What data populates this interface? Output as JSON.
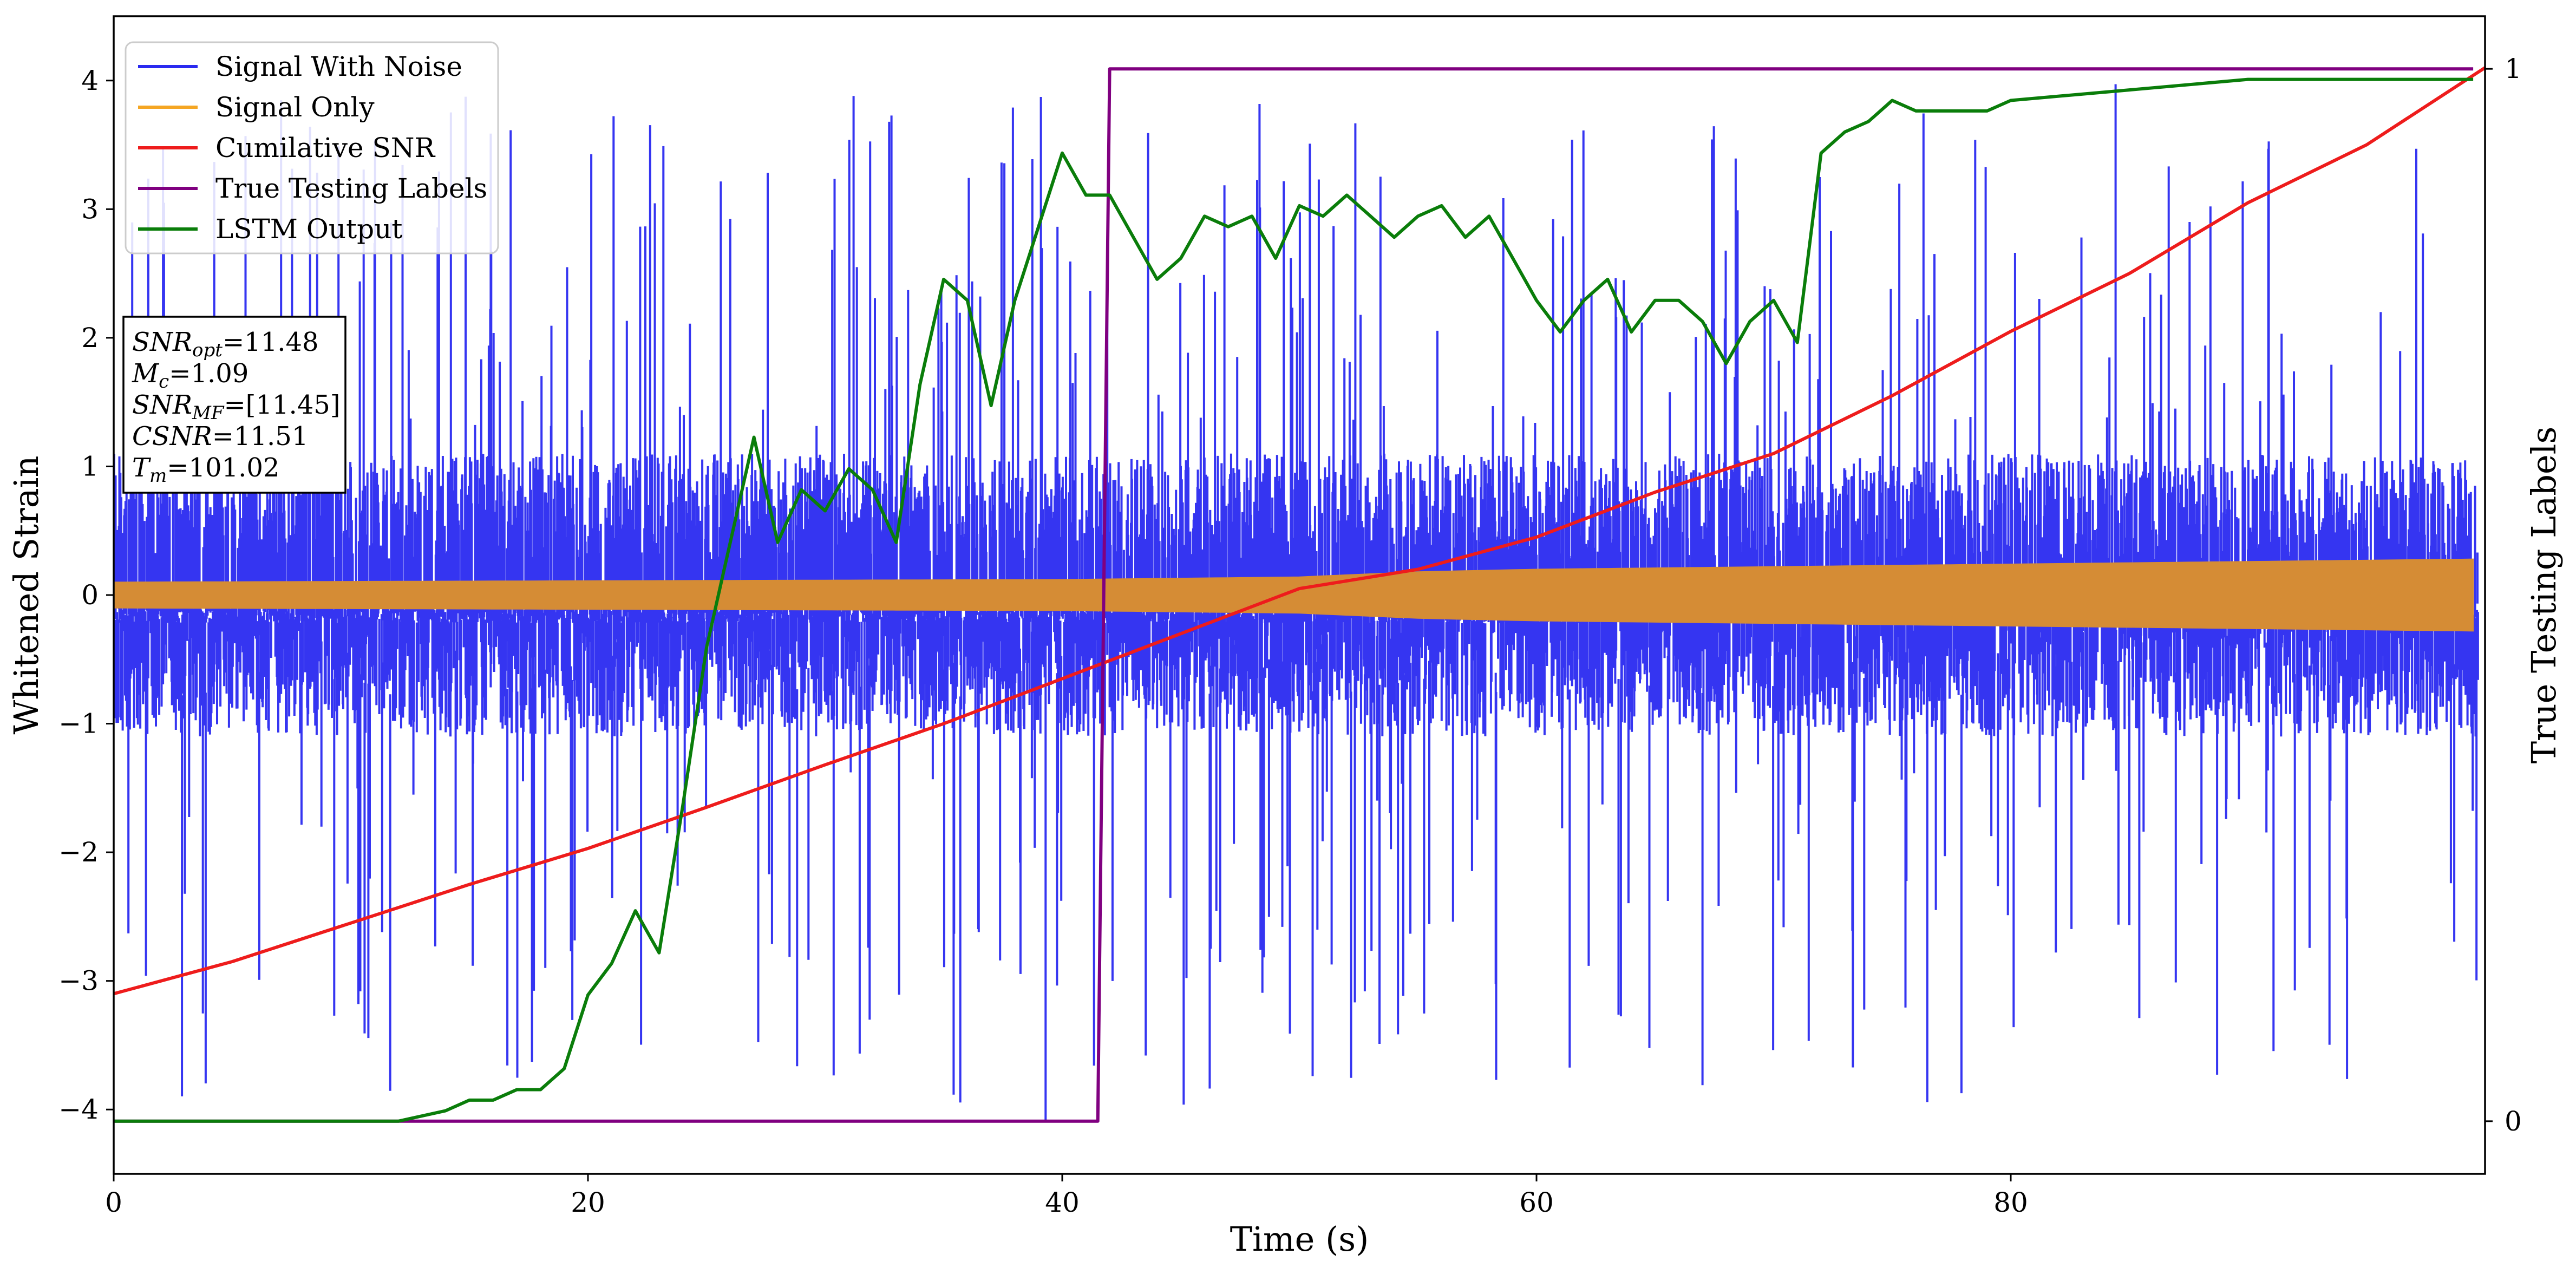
{
  "chart_data": {
    "type": "line",
    "title": "",
    "xlabel": "Time (s)",
    "ylabel": "Whitened Strain",
    "y2label": "True Testing Labels",
    "xlim": [
      0,
      100
    ],
    "ylim": [
      -4.5,
      4.5
    ],
    "y2lim": [
      -0.05,
      1.05
    ],
    "xticks": [
      0,
      20,
      40,
      60,
      80
    ],
    "yticks": [
      -4,
      -3,
      -2,
      -1,
      0,
      1,
      2,
      3,
      4
    ],
    "y2ticks": [
      0,
      1
    ],
    "grid": false,
    "legend_position": "top-left",
    "annotation_box": {
      "lines": [
        {
          "base": "SNR",
          "sub": "opt",
          "rest": "=11.48"
        },
        {
          "base": "M",
          "sub": "c",
          "rest": "=1.09"
        },
        {
          "base": "SNR",
          "sub": "MF",
          "rest": "=[11.45]"
        },
        {
          "base": "CSNR",
          "sub": "",
          "rest": "=11.51"
        },
        {
          "base": "T",
          "sub": "m",
          "rest": "=101.02"
        }
      ]
    },
    "series": [
      {
        "name": "Signal With Noise",
        "color": "#2a2af0",
        "axis": "left",
        "kind": "noise",
        "band_half_width": 1.1,
        "spike_max": 4.0,
        "notable_spike": {
          "x": 39.3,
          "y": -4.1
        }
      },
      {
        "name": "Signal Only",
        "color": "#f5a623",
        "render_color": "#d58c35",
        "axis": "left",
        "kind": "envelope",
        "x": [
          0,
          20,
          40,
          50,
          55,
          60,
          70,
          80,
          90,
          100
        ],
        "amplitude": [
          0.1,
          0.11,
          0.12,
          0.14,
          0.18,
          0.2,
          0.22,
          0.24,
          0.26,
          0.28
        ]
      },
      {
        "name": "Cumilative SNR",
        "color": "#ee1c1c",
        "axis": "left",
        "x": [
          0,
          5,
          10,
          15,
          20,
          25,
          30,
          35,
          40,
          45,
          50,
          55,
          60,
          65,
          70,
          75,
          80,
          85,
          90,
          95,
          100
        ],
        "y": [
          -3.1,
          -2.85,
          -2.55,
          -2.25,
          -1.97,
          -1.65,
          -1.32,
          -1.0,
          -0.65,
          -0.3,
          0.05,
          0.2,
          0.45,
          0.8,
          1.1,
          1.55,
          2.05,
          2.5,
          3.05,
          3.5,
          4.1
        ]
      },
      {
        "name": "True Testing Labels",
        "color": "#800080",
        "axis": "right",
        "x": [
          0,
          41.5,
          42.0,
          99.5
        ],
        "y": [
          0,
          0,
          1,
          1
        ]
      },
      {
        "name": "LSTM Output",
        "color": "#0a7d0a",
        "axis": "right",
        "x": [
          0,
          10,
          12,
          14,
          15,
          16,
          17,
          18,
          19,
          20,
          21,
          22,
          23,
          24,
          25,
          26,
          27,
          28,
          29,
          30,
          31,
          32,
          33,
          34,
          35,
          36,
          37,
          38,
          39,
          40,
          41,
          42,
          43,
          44,
          45,
          46,
          47,
          48,
          49,
          50,
          51,
          52,
          53,
          54,
          55,
          56,
          57,
          58,
          59,
          60,
          61,
          62,
          63,
          64,
          65,
          66,
          67,
          68,
          69,
          70,
          71,
          72,
          73,
          74,
          75,
          76,
          77,
          78,
          79,
          80,
          85,
          90,
          95,
          99.5
        ],
        "y": [
          0,
          0,
          0.0,
          0.01,
          0.02,
          0.02,
          0.03,
          0.03,
          0.05,
          0.12,
          0.15,
          0.2,
          0.16,
          0.3,
          0.45,
          0.55,
          0.65,
          0.55,
          0.6,
          0.58,
          0.62,
          0.6,
          0.55,
          0.7,
          0.8,
          0.78,
          0.68,
          0.78,
          0.85,
          0.92,
          0.88,
          0.88,
          0.84,
          0.8,
          0.82,
          0.86,
          0.85,
          0.86,
          0.82,
          0.87,
          0.86,
          0.88,
          0.86,
          0.84,
          0.86,
          0.87,
          0.84,
          0.86,
          0.82,
          0.78,
          0.75,
          0.78,
          0.8,
          0.75,
          0.78,
          0.78,
          0.76,
          0.72,
          0.76,
          0.78,
          0.74,
          0.92,
          0.94,
          0.95,
          0.97,
          0.96,
          0.96,
          0.96,
          0.96,
          0.97,
          0.98,
          0.99,
          0.99,
          0.99
        ]
      }
    ]
  }
}
